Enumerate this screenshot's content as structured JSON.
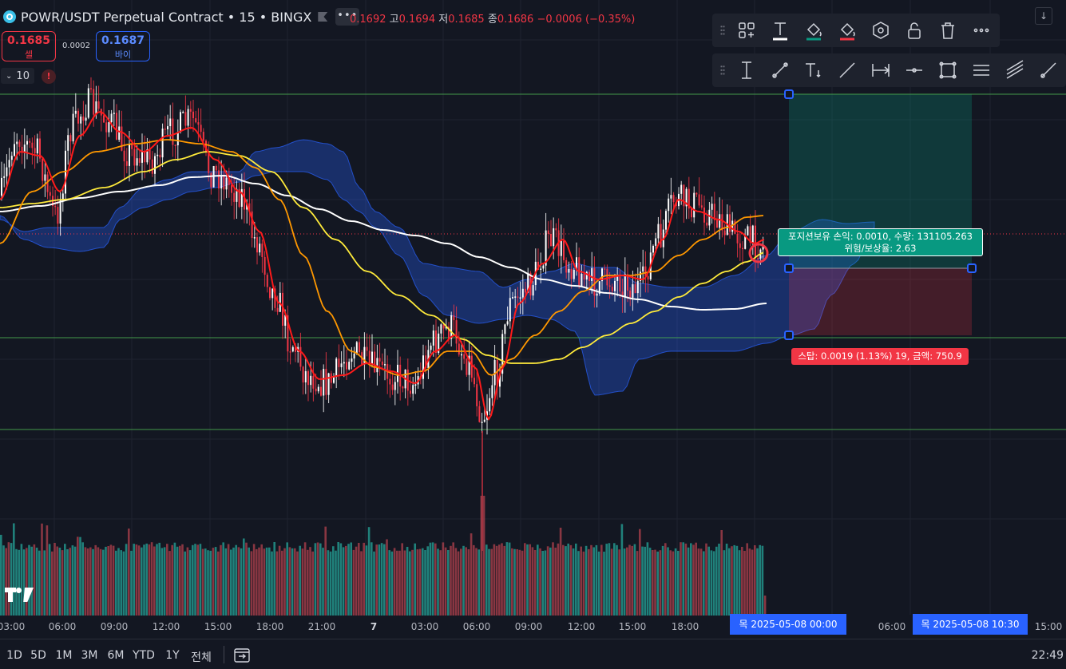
{
  "header": {
    "symbol_title": "POWR/USDT Perpetual Contract • 15 • BINGX",
    "more_label": "•••",
    "ohlc": {
      "open_value": "0.1692",
      "high_label": "고",
      "high_value": "0.1694",
      "low_label": "저",
      "low_value": "0.1685",
      "close_label": "종",
      "close_value": "0.1686",
      "change": "−0.0006 (−0.35%)"
    }
  },
  "trade": {
    "sell_price": "0.1685",
    "sell_label": "셀",
    "spread": "0.0002",
    "buy_price": "0.1687",
    "buy_label": "바이"
  },
  "interval": {
    "value": "10"
  },
  "alert_icon_text": "!",
  "scroll_icon_text": "↓",
  "toolbar_top": [
    "plus-grid-icon",
    "text-icon",
    "fill-bucket-icon",
    "fill-bucket-red-icon",
    "hexagon-icon",
    "unlock-icon",
    "trash-icon",
    "more-icon"
  ],
  "toolbar_bottom": [
    "vertical-measure-icon",
    "trend-line-icon",
    "text-anchor-icon",
    "line-icon",
    "date-range-icon",
    "horizontal-ray-icon",
    "rectangle-icon",
    "parallel-lines-icon",
    "channel-icon",
    "ray-icon"
  ],
  "position": {
    "line1": "포지션보유 손익: 0.0010, 수량: 131105.263",
    "line2": "위험/보상율: 2.63",
    "stop_label": "스탑: 0.0019 (1.13%) 19, 금액: 750.9"
  },
  "xaxis": {
    "ticks": [
      {
        "label": "03:00",
        "bold": false
      },
      {
        "label": "06:00",
        "bold": false
      },
      {
        "label": "09:00",
        "bold": false
      },
      {
        "label": "12:00",
        "bold": false
      },
      {
        "label": "15:00",
        "bold": false
      },
      {
        "label": "18:00",
        "bold": false
      },
      {
        "label": "21:00",
        "bold": false
      },
      {
        "label": "7",
        "bold": true
      },
      {
        "label": "03:00",
        "bold": false
      },
      {
        "label": "06:00",
        "bold": false
      },
      {
        "label": "09:00",
        "bold": false
      },
      {
        "label": "12:00",
        "bold": false
      },
      {
        "label": "15:00",
        "bold": false
      },
      {
        "label": "18:00",
        "bold": false
      },
      {
        "label": "06:00",
        "bold": false
      },
      {
        "label": "15:00",
        "bold": false
      }
    ],
    "badge_left": "목 2025-05-08   00:00",
    "badge_right": "목 2025-05-08   10:30"
  },
  "bottom_bar": {
    "ranges": [
      "1D",
      "5D",
      "1M",
      "3M",
      "6M",
      "YTD",
      "1Y",
      "전체"
    ],
    "clock": "22:49"
  },
  "colors": {
    "background": "#131722",
    "up": "#ffffff",
    "down": "#f23645",
    "ema_fast": "#ff1a1a",
    "ema_mid": "#ff9800",
    "ema_slow": "#ffeb3b",
    "ma_long": "#ffffff",
    "cloud": "#2962ff",
    "profit": "#089981",
    "loss": "#f23645",
    "hline": "#4caf50"
  }
}
